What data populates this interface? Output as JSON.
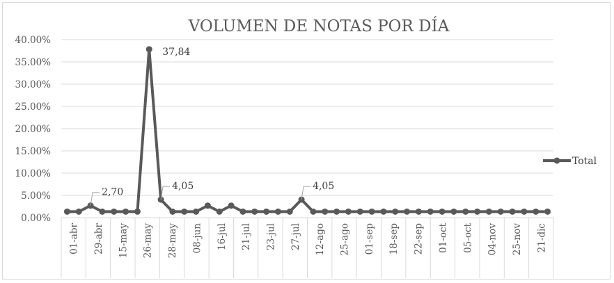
{
  "chart_data": {
    "type": "line",
    "title": "VOLUMEN DE NOTAS POR DÍA",
    "xlabel": "",
    "ylabel": "",
    "ylim": [
      0,
      40
    ],
    "y_tick_labels": [
      "0.00%",
      "5.00%",
      "10.00%",
      "15.00%",
      "20.00%",
      "25.00%",
      "30.00%",
      "35.00%",
      "40.00%"
    ],
    "grid": "horizontal",
    "legend_position": "right",
    "x_tick_labels": [
      "01-abr",
      "29-abr",
      "15-may",
      "26-may",
      "28-may",
      "08-jun",
      "16-jul",
      "21-jul",
      "23-jul",
      "27-jul",
      "12-ago",
      "25-ago",
      "01-sep",
      "18-sep",
      "22-sep",
      "01-oct",
      "05-oct",
      "04-nov",
      "25-nov",
      "21-dic"
    ],
    "series": [
      {
        "name": "Total",
        "color": "#595959",
        "values": [
          1.35,
          1.35,
          2.7,
          1.35,
          1.35,
          1.35,
          1.35,
          37.84,
          4.05,
          1.35,
          1.35,
          1.35,
          2.7,
          1.35,
          2.7,
          1.35,
          1.35,
          1.35,
          1.35,
          1.35,
          4.05,
          1.35,
          1.35,
          1.35,
          1.35,
          1.35,
          1.35,
          1.35,
          1.35,
          1.35,
          1.35,
          1.35,
          1.35,
          1.35,
          1.35,
          1.35,
          1.35,
          1.35,
          1.35,
          1.35,
          1.35,
          1.35
        ]
      }
    ],
    "data_labels": [
      {
        "index": 2,
        "text": "2,70"
      },
      {
        "index": 7,
        "text": "37,84"
      },
      {
        "index": 8,
        "text": "4,05"
      },
      {
        "index": 20,
        "text": "4,05"
      }
    ]
  }
}
